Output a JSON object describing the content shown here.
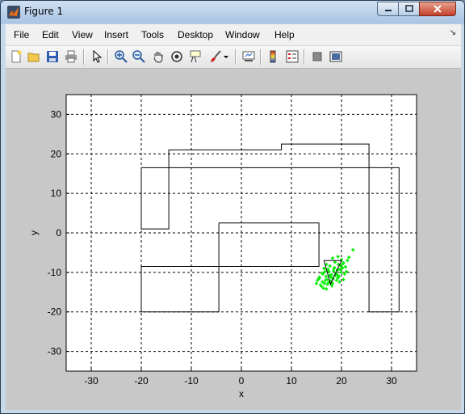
{
  "window": {
    "title": "Figure 1"
  },
  "menu": [
    "File",
    "Edit",
    "View",
    "Insert",
    "Tools",
    "Desktop",
    "Window",
    "Help"
  ],
  "toolbar": {
    "icons": [
      "new-figure-icon",
      "open-file-icon",
      "save-icon",
      "print-icon",
      "edit-plot-arrow-icon",
      "zoom-in-icon",
      "zoom-out-icon",
      "pan-hand-icon",
      "rotate-3d-icon",
      "data-cursor-icon",
      "brush-icon",
      "brush-dropdown-icon",
      "link-plot-icon",
      "colorbar-icon",
      "legend-icon",
      "hide-plot-tools-icon",
      "show-plot-tools-icon"
    ]
  },
  "colors": {
    "figure_background": "#c8c8c8",
    "axes_background": "#ffffff",
    "outline_color": "#000000",
    "points_color": "#00ee00"
  },
  "chart_data": {
    "type": "scatter",
    "title": "",
    "xlabel": "x",
    "ylabel": "y",
    "xlim": [
      -35,
      35
    ],
    "ylim": [
      -35,
      35
    ],
    "xticks": [
      -30,
      -20,
      -10,
      0,
      10,
      20,
      30
    ],
    "yticks": [
      -30,
      -20,
      -10,
      0,
      10,
      20,
      30
    ],
    "grid": "dashed",
    "outlines": [
      {
        "name": "",
        "points": [
          [
            -20,
            16.5
          ],
          [
            -20,
            1
          ],
          [
            -14.5,
            1
          ],
          [
            -14.5,
            21
          ],
          [
            8,
            21
          ],
          [
            8,
            22.5
          ],
          [
            25.5,
            22.5
          ],
          [
            25.5,
            16.5
          ],
          [
            31.5,
            16.5
          ],
          [
            31.5,
            -20
          ],
          [
            25.5,
            -20
          ],
          [
            25.5,
            16.5
          ],
          [
            -20,
            16.5
          ]
        ]
      },
      {
        "name": "",
        "points": [
          [
            -4.5,
            2.5
          ],
          [
            15.5,
            2.5
          ],
          [
            15.5,
            -8.5
          ],
          [
            -20,
            -8.5
          ],
          [
            -20,
            -20
          ],
          [
            -4.5,
            -20
          ],
          [
            -4.5,
            2.5
          ]
        ]
      }
    ],
    "triangle": [
      [
        16.5,
        -7
      ],
      [
        20,
        -7
      ],
      [
        17.8,
        -13
      ]
    ],
    "series": [
      {
        "name": "",
        "x": [
          15.2,
          15.6,
          16.0,
          16.3,
          16.6,
          16.9,
          17.2,
          17.5,
          17.8,
          18.0,
          18.3,
          18.6,
          18.9,
          19.2,
          19.5,
          19.8,
          20.1,
          20.4,
          20.8,
          21.2,
          15.8,
          16.2,
          16.7,
          17.1,
          17.6,
          18.1,
          18.5,
          19.0,
          19.4,
          19.9,
          20.3,
          16.4,
          17.0,
          17.4,
          17.9,
          18.4,
          18.8,
          19.3,
          19.7,
          20.2,
          15.5,
          16.1,
          16.8,
          17.3,
          17.7,
          18.2,
          18.7,
          19.1,
          19.6,
          20.0,
          20.6,
          21.0,
          22.3,
          21.5,
          19.3,
          18.2,
          17.0,
          16.5,
          20.4,
          15.0
        ],
        "y": [
          -12.0,
          -11.2,
          -13.5,
          -10.4,
          -12.8,
          -11.0,
          -13.0,
          -9.8,
          -12.2,
          -10.6,
          -11.6,
          -8.8,
          -10.2,
          -9.4,
          -11.0,
          -8.2,
          -9.0,
          -7.6,
          -8.6,
          -7.0,
          -13.2,
          -12.4,
          -9.8,
          -11.8,
          -10.8,
          -13.4,
          -9.0,
          -12.0,
          -8.0,
          -10.0,
          -7.8,
          -14.0,
          -14.2,
          -12.6,
          -11.2,
          -9.6,
          -10.8,
          -11.4,
          -9.2,
          -8.8,
          -11.6,
          -10.2,
          -12.0,
          -9.2,
          -8.4,
          -12.8,
          -7.4,
          -10.6,
          -12.4,
          -6.8,
          -10.4,
          -9.8,
          -4.3,
          -6.2,
          -6.0,
          -6.4,
          -8.0,
          -9.0,
          -11.8,
          -12.8
        ]
      }
    ]
  }
}
